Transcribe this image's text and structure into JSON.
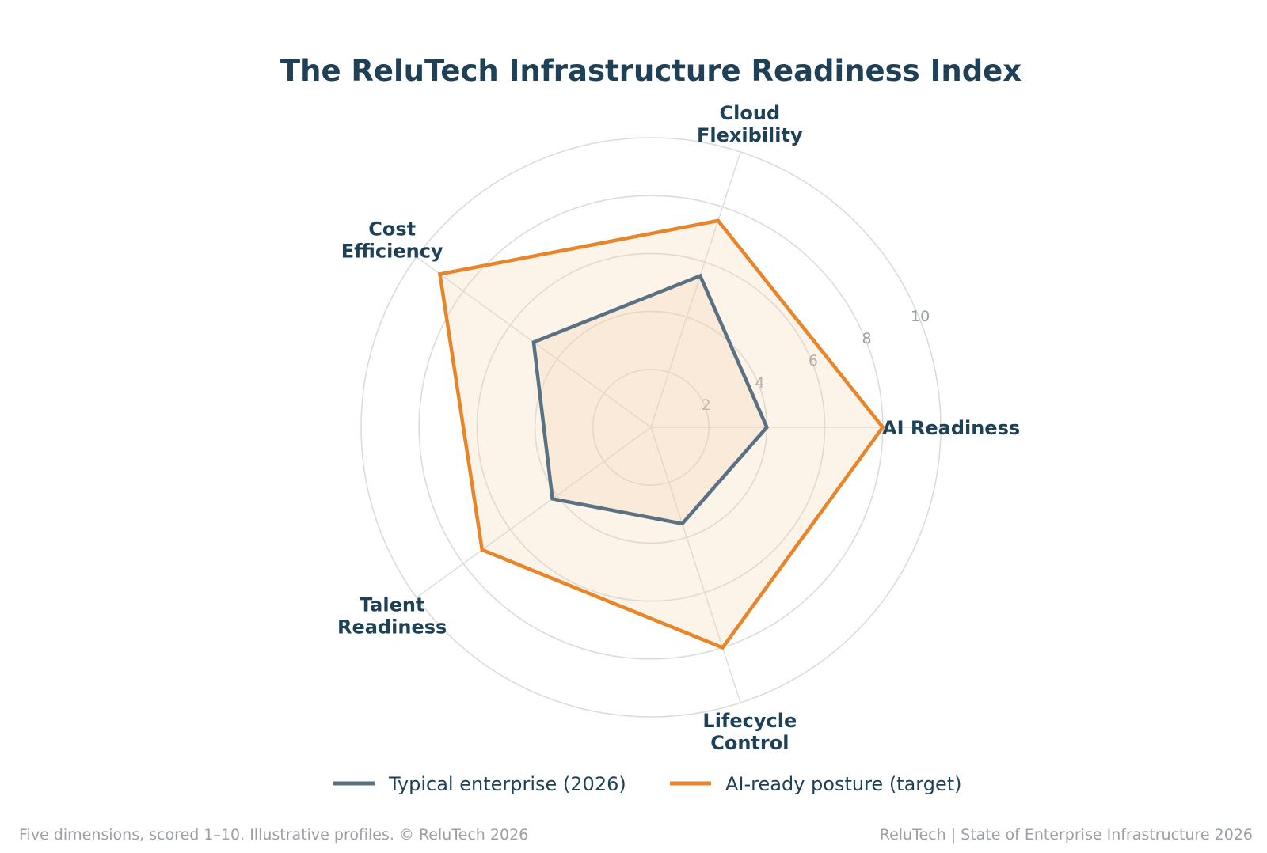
{
  "chart_data": {
    "type": "radar",
    "title": "The ReluTech Infrastructure Readiness Index",
    "axes": [
      {
        "lines": [
          "AI Readiness"
        ]
      },
      {
        "lines": [
          "Cloud",
          "Flexibility"
        ]
      },
      {
        "lines": [
          "Cost",
          "Efficiency"
        ]
      },
      {
        "lines": [
          "Talent",
          "Readiness"
        ]
      },
      {
        "lines": [
          "Lifecycle",
          "Control"
        ]
      }
    ],
    "rlim": [
      0,
      10
    ],
    "rticks": [
      2,
      4,
      6,
      8,
      10
    ],
    "rtick_labels": [
      "2",
      "4",
      "6",
      "8",
      "10"
    ],
    "grid": true,
    "series": [
      {
        "name": "Typical enterprise (2026)",
        "values": [
          4,
          5.5,
          5,
          4.2,
          3.5
        ],
        "color": "#5a7184"
      },
      {
        "name": "AI-ready posture (target)",
        "values": [
          8,
          7.5,
          9,
          7.2,
          8
        ],
        "color": "#e8852a"
      }
    ],
    "fill_color": "#f6d5b0",
    "legend_position": "bottom",
    "colors": {
      "text": "#1f4157",
      "muted": "#9aa0a6",
      "grid": "#d9dcdf"
    }
  },
  "footer": {
    "left": "Five dimensions, scored 1–10. Illustrative profiles. © ReluTech 2026",
    "right": "ReluTech  |  State of Enterprise Infrastructure 2026"
  }
}
